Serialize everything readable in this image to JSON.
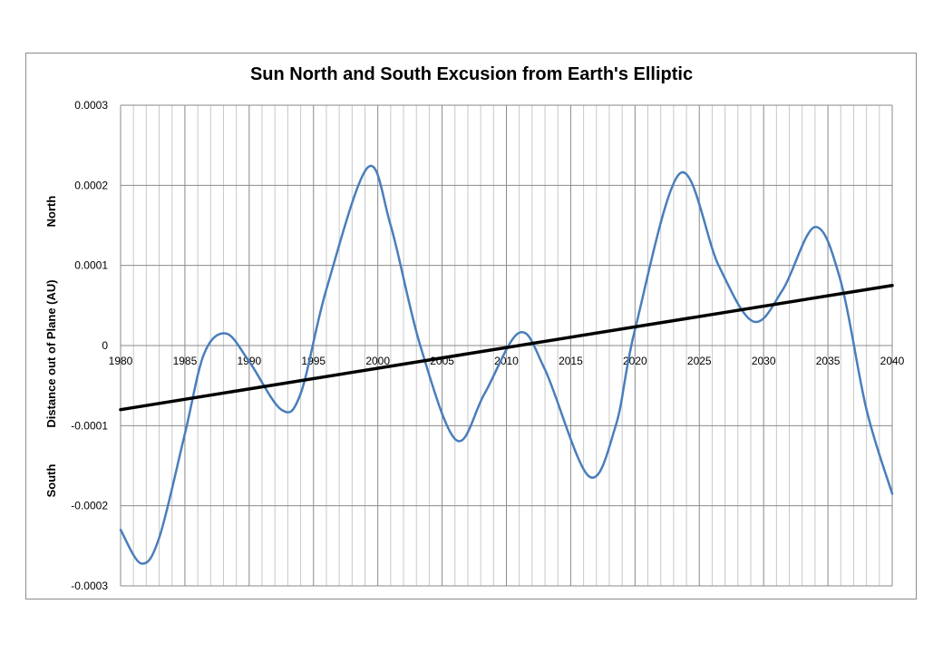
{
  "chart_data": {
    "type": "line",
    "title": "Sun  North and South Excusion from Earth's Elliptic",
    "ylabel": "Distance out of Plane (AU)",
    "ylabel_north": "North",
    "ylabel_south": "South",
    "xlim": [
      1980,
      2040
    ],
    "ylim": [
      -0.0003,
      0.0003
    ],
    "y_ticks": [
      0.0003,
      0.0002,
      0.0001,
      0,
      -0.0001,
      -0.0002,
      -0.0003
    ],
    "y_tick_labels": [
      "0.0003",
      "0.0002",
      "0.0001",
      "0",
      "-0.0001",
      "-0.0002",
      "-0.0003"
    ],
    "x_ticks": [
      1980,
      1985,
      1990,
      1995,
      2000,
      2005,
      2010,
      2015,
      2020,
      2025,
      2030,
      2035,
      2040
    ],
    "x_tick_labels": [
      "1980",
      "1985",
      "1990",
      "1995",
      "2000",
      "2005",
      "2010",
      "2015",
      "2020",
      "2025",
      "2030",
      "2035",
      "2040"
    ],
    "grid": true,
    "series": [
      {
        "color": "#4a7ebb",
        "x": [
          1980,
          1981.6,
          1983.0,
          1985.0,
          1986.5,
          1988.2,
          1990.0,
          1992.5,
          1994.0,
          1996.0,
          1999.2,
          2001.0,
          2003.3,
          2006.1,
          2008.3,
          2011.0,
          2013.0,
          2016.4,
          2018.5,
          2020.0,
          2023.5,
          2026.5,
          2029.2,
          2031.5,
          2034.0,
          2036.0,
          2038.0,
          2040.0
        ],
        "values": [
          -0.00023,
          -0.000272,
          -0.00024,
          -0.00011,
          -1e-05,
          1.5e-05,
          -2e-05,
          -8e-05,
          -6e-05,
          7e-05,
          0.000222,
          0.00015,
          0.0,
          -0.000118,
          -6e-05,
          1.6e-05,
          -3e-05,
          -0.000163,
          -0.0001,
          2e-05,
          0.000215,
          0.0001,
          3e-05,
          7e-05,
          0.000148,
          8e-05,
          -8e-05,
          -0.000185
        ]
      },
      {
        "color": "#000000",
        "x": [
          1980,
          2040
        ],
        "values": [
          -8e-05,
          7.5e-05
        ]
      }
    ]
  }
}
